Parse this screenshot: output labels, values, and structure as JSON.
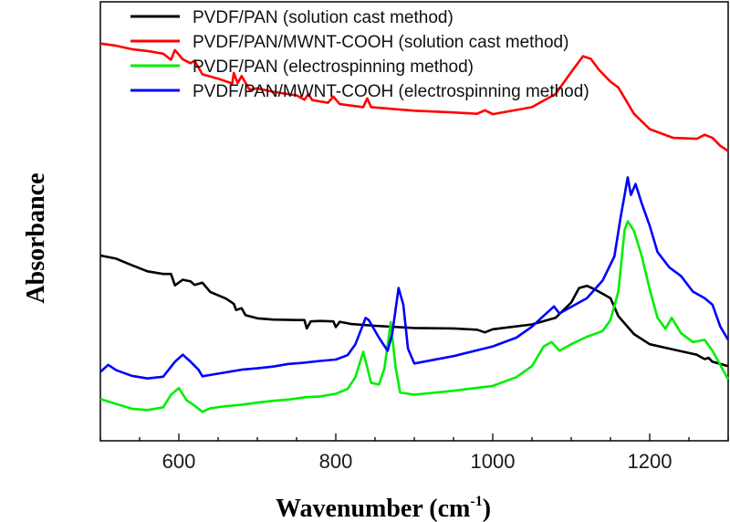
{
  "chart_data": {
    "type": "line",
    "title": "",
    "xlabel": "Wavenumber",
    "xlabel_unit": "cm",
    "xlabel_unit_exp": "-1",
    "ylabel": "Absorbance",
    "xlim": [
      500,
      1300
    ],
    "ylim": [
      0,
      100
    ],
    "y_ticks_shown": false,
    "x_ticks": [
      600,
      800,
      1000,
      1200
    ],
    "x_tick_labels": [
      "600",
      "800",
      "1000",
      "1200"
    ],
    "grid": false,
    "legend_position": "top-right",
    "series": [
      {
        "name": "PVDF/PAN (solution cast method)",
        "color": "#000000",
        "points": [
          [
            500,
            42.2
          ],
          [
            520,
            41.5
          ],
          [
            540,
            40.0
          ],
          [
            560,
            38.6
          ],
          [
            580,
            38.0
          ],
          [
            590,
            38.0
          ],
          [
            595,
            35.4
          ],
          [
            605,
            36.7
          ],
          [
            615,
            36.3
          ],
          [
            620,
            35.5
          ],
          [
            630,
            36.0
          ],
          [
            640,
            33.9
          ],
          [
            660,
            32.4
          ],
          [
            670,
            31.2
          ],
          [
            673,
            29.8
          ],
          [
            680,
            30.2
          ],
          [
            685,
            28.6
          ],
          [
            700,
            27.9
          ],
          [
            720,
            27.6
          ],
          [
            750,
            27.5
          ],
          [
            760,
            27.5
          ],
          [
            763,
            25.6
          ],
          [
            768,
            27.2
          ],
          [
            780,
            27.3
          ],
          [
            797,
            27.2
          ],
          [
            800,
            25.9
          ],
          [
            805,
            27.1
          ],
          [
            820,
            26.6
          ],
          [
            850,
            26.2
          ],
          [
            900,
            25.7
          ],
          [
            950,
            25.6
          ],
          [
            980,
            25.3
          ],
          [
            990,
            24.7
          ],
          [
            1000,
            25.4
          ],
          [
            1050,
            26.5
          ],
          [
            1080,
            28.0
          ],
          [
            1100,
            31.5
          ],
          [
            1110,
            34.8
          ],
          [
            1120,
            35.3
          ],
          [
            1130,
            34.5
          ],
          [
            1140,
            33.5
          ],
          [
            1150,
            32.5
          ],
          [
            1155,
            30.5
          ],
          [
            1160,
            28.4
          ],
          [
            1180,
            24.3
          ],
          [
            1200,
            22.0
          ],
          [
            1230,
            20.8
          ],
          [
            1260,
            19.6
          ],
          [
            1270,
            18.6
          ],
          [
            1275,
            18.9
          ],
          [
            1280,
            18.0
          ],
          [
            1300,
            17.0
          ]
        ]
      },
      {
        "name": "PVDF/PAN/MWNT-COOH (solution cast method)",
        "color": "#ff0000",
        "points": [
          [
            500,
            90.5
          ],
          [
            520,
            90.0
          ],
          [
            540,
            89.2
          ],
          [
            560,
            88.8
          ],
          [
            580,
            88.2
          ],
          [
            590,
            86.8
          ],
          [
            595,
            89.0
          ],
          [
            605,
            86.9
          ],
          [
            615,
            86.0
          ],
          [
            620,
            86.6
          ],
          [
            630,
            83.5
          ],
          [
            650,
            82.5
          ],
          [
            668,
            81.4
          ],
          [
            670,
            83.8
          ],
          [
            675,
            81.5
          ],
          [
            680,
            83.1
          ],
          [
            690,
            80.0
          ],
          [
            700,
            80.3
          ],
          [
            720,
            79.5
          ],
          [
            750,
            78.7
          ],
          [
            760,
            77.7
          ],
          [
            765,
            79.0
          ],
          [
            770,
            77.6
          ],
          [
            790,
            77.0
          ],
          [
            797,
            78.4
          ],
          [
            805,
            76.7
          ],
          [
            835,
            76.0
          ],
          [
            840,
            78.0
          ],
          [
            845,
            76.0
          ],
          [
            900,
            75.2
          ],
          [
            950,
            74.8
          ],
          [
            980,
            74.5
          ],
          [
            990,
            75.3
          ],
          [
            1000,
            74.4
          ],
          [
            1050,
            76.0
          ],
          [
            1080,
            79.0
          ],
          [
            1100,
            84.0
          ],
          [
            1115,
            87.6
          ],
          [
            1125,
            87.0
          ],
          [
            1135,
            84.6
          ],
          [
            1150,
            81.8
          ],
          [
            1160,
            80.5
          ],
          [
            1180,
            74.5
          ],
          [
            1200,
            71.0
          ],
          [
            1230,
            69.0
          ],
          [
            1260,
            68.8
          ],
          [
            1270,
            69.7
          ],
          [
            1280,
            69.0
          ],
          [
            1290,
            67.2
          ],
          [
            1300,
            66.0
          ]
        ]
      },
      {
        "name": "PVDF/PAN (electrospinning method)",
        "color": "#00ee00",
        "points": [
          [
            500,
            9.5
          ],
          [
            520,
            8.4
          ],
          [
            540,
            7.3
          ],
          [
            560,
            7.0
          ],
          [
            580,
            7.6
          ],
          [
            590,
            10.5
          ],
          [
            600,
            12.0
          ],
          [
            610,
            9.2
          ],
          [
            620,
            8.0
          ],
          [
            630,
            6.6
          ],
          [
            640,
            7.4
          ],
          [
            660,
            7.9
          ],
          [
            680,
            8.2
          ],
          [
            700,
            8.7
          ],
          [
            720,
            9.1
          ],
          [
            740,
            9.4
          ],
          [
            760,
            9.9
          ],
          [
            780,
            10.1
          ],
          [
            800,
            10.7
          ],
          [
            815,
            11.8
          ],
          [
            825,
            14.5
          ],
          [
            835,
            20.3
          ],
          [
            845,
            13.2
          ],
          [
            855,
            12.8
          ],
          [
            862,
            16.5
          ],
          [
            870,
            27.0
          ],
          [
            876,
            17.0
          ],
          [
            882,
            11.0
          ],
          [
            900,
            10.5
          ],
          [
            950,
            11.4
          ],
          [
            1000,
            12.5
          ],
          [
            1030,
            14.5
          ],
          [
            1050,
            17.0
          ],
          [
            1065,
            21.5
          ],
          [
            1075,
            22.5
          ],
          [
            1085,
            20.5
          ],
          [
            1100,
            22.0
          ],
          [
            1120,
            23.7
          ],
          [
            1140,
            25.0
          ],
          [
            1150,
            27.5
          ],
          [
            1160,
            34.0
          ],
          [
            1168,
            48.0
          ],
          [
            1172,
            50.0
          ],
          [
            1180,
            47.8
          ],
          [
            1190,
            42.0
          ],
          [
            1200,
            34.5
          ],
          [
            1210,
            28.0
          ],
          [
            1220,
            25.5
          ],
          [
            1228,
            28.0
          ],
          [
            1240,
            24.5
          ],
          [
            1255,
            22.5
          ],
          [
            1270,
            23.0
          ],
          [
            1280,
            20.5
          ],
          [
            1300,
            14.0
          ]
        ]
      },
      {
        "name": "PVDF/PAN/MWNT-COOH (electrospinning method)",
        "color": "#0000ff",
        "points": [
          [
            500,
            15.7
          ],
          [
            510,
            17.3
          ],
          [
            520,
            16.1
          ],
          [
            540,
            14.8
          ],
          [
            560,
            14.2
          ],
          [
            580,
            14.6
          ],
          [
            595,
            18.0
          ],
          [
            605,
            19.6
          ],
          [
            615,
            18.0
          ],
          [
            625,
            16.2
          ],
          [
            630,
            14.7
          ],
          [
            640,
            15.0
          ],
          [
            660,
            15.6
          ],
          [
            680,
            16.2
          ],
          [
            700,
            16.5
          ],
          [
            720,
            16.9
          ],
          [
            740,
            17.5
          ],
          [
            760,
            17.8
          ],
          [
            780,
            18.2
          ],
          [
            800,
            18.5
          ],
          [
            815,
            19.5
          ],
          [
            825,
            22.0
          ],
          [
            838,
            28.0
          ],
          [
            842,
            27.5
          ],
          [
            855,
            23.5
          ],
          [
            866,
            20.5
          ],
          [
            872,
            24.5
          ],
          [
            880,
            34.8
          ],
          [
            886,
            31.0
          ],
          [
            892,
            21.0
          ],
          [
            900,
            17.6
          ],
          [
            950,
            19.3
          ],
          [
            1000,
            21.5
          ],
          [
            1030,
            23.5
          ],
          [
            1050,
            26.0
          ],
          [
            1065,
            28.5
          ],
          [
            1078,
            30.6
          ],
          [
            1085,
            29.0
          ],
          [
            1100,
            30.5
          ],
          [
            1120,
            32.5
          ],
          [
            1140,
            36.5
          ],
          [
            1155,
            42.0
          ],
          [
            1163,
            51.0
          ],
          [
            1168,
            56.0
          ],
          [
            1172,
            60.0
          ],
          [
            1176,
            56.0
          ],
          [
            1182,
            58.5
          ],
          [
            1190,
            54.0
          ],
          [
            1200,
            49.0
          ],
          [
            1210,
            43.0
          ],
          [
            1225,
            39.5
          ],
          [
            1240,
            37.5
          ],
          [
            1255,
            34.0
          ],
          [
            1270,
            32.5
          ],
          [
            1280,
            31.0
          ],
          [
            1290,
            26.0
          ],
          [
            1300,
            23.0
          ]
        ]
      }
    ]
  }
}
